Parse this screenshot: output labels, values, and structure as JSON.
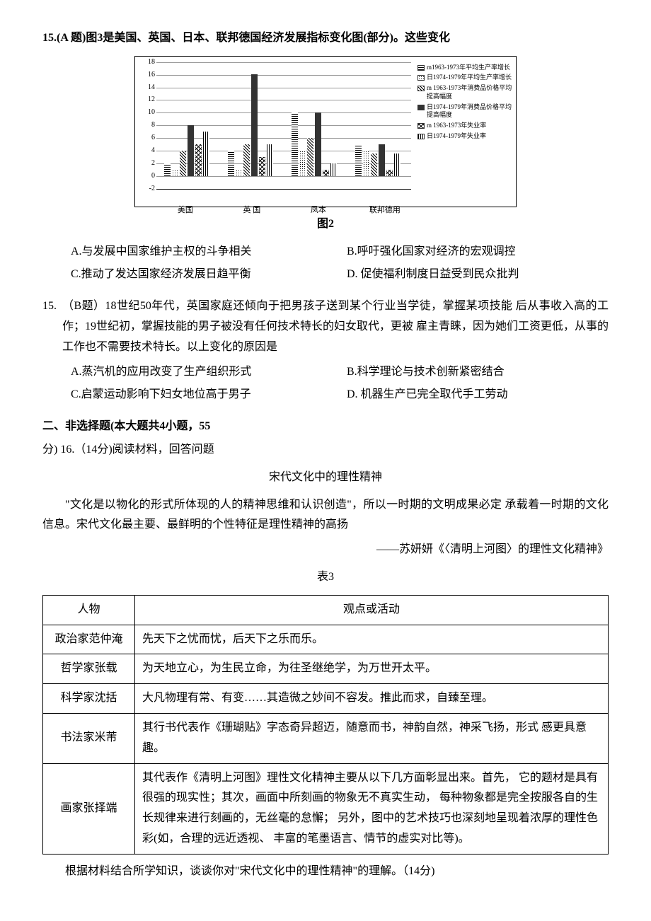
{
  "q15a": {
    "header": "15.(A 题)图3是美国、英国、日本、联邦德国经济发展指标变化图(部分)。这些变化",
    "caption": "图2",
    "options": {
      "A": "A.与发展中国家维护主权的斗争相关",
      "B": "B.呼吁强化国家对经济的宏观调控",
      "C": "C.推动了发达国家经济发展日趋平衡",
      "D": "D. 促使福利制度日益受到民众批判"
    }
  },
  "chart": {
    "ylim": [
      -2,
      18
    ],
    "ytick_step": 2,
    "categories": [
      "美国",
      "英 国",
      "凤本",
      "联邦德用"
    ],
    "series": [
      {
        "label": "m1963-1973年平均生产率增长",
        "pattern": "pattern-hatch"
      },
      {
        "label": "日1974-1979年平均生产率增长",
        "pattern": "pattern-dots"
      },
      {
        "label": "m 1963-1973年消费品价格平均提高幅度",
        "pattern": "pattern-diag"
      },
      {
        "label": "日1974-1979年消费品价格平均提高幅度",
        "pattern": "pattern-solid"
      },
      {
        "label": "m 1963-1973年失业率",
        "pattern": "pattern-cross"
      },
      {
        "label": "日1974-1979年失业率",
        "pattern": "pattern-vert"
      }
    ],
    "values": [
      [
        2,
        1,
        4,
        8,
        5,
        7
      ],
      [
        4,
        1,
        5,
        16,
        3,
        5
      ],
      [
        10,
        4,
        6,
        10,
        1,
        2
      ],
      [
        5,
        4,
        3.5,
        5,
        1,
        3.5
      ]
    ],
    "group_width_pct": 20,
    "group_positions_pct": [
      3,
      28,
      53,
      78
    ]
  },
  "q15b": {
    "num": "15.",
    "body": "（B题）18世纪50年代，英国家庭还倾向于把男孩子送到某个行业当学徒，掌握某项技能 后从事收入高的工作；19世纪初，掌握技能的男子被没有任何技术特长的妇女取代，更被 雇主青睐，因为她们工资更低，从事的工作也不需要技术特长。以上变化的原因是",
    "options": {
      "A": "A.蒸汽机的应用改变了生产组织形式",
      "B": "B.科学理论与技术创新紧密结合",
      "C": "C.启蒙运动影响下妇女地位高于男子",
      "D": "D. 机器生产已完全取代手工劳动"
    }
  },
  "section2": {
    "header": "二、非选择题(本大题共4小题，55",
    "sub": "分)  16.（14分)阅读材料，回答问题",
    "title": "宋代文化中的理性精神",
    "para": "\"文化是以物化的形式所体现的人的精神思维和认识创造\"，所以一时期的文明成果必定 承载着一时期的文化信息。宋代文化最主要、最鲜明的个性特征是理性精神的高扬",
    "citation": "——苏妍妍《〈清明上河图〉的理性文化精神》",
    "table_caption": "表3"
  },
  "table": {
    "headers": [
      "人物",
      "观点或活动"
    ],
    "rows": [
      [
        "政治家范仲淹",
        "先天下之忧而忧，后天下之乐而乐。"
      ],
      [
        "哲学家张载",
        "为天地立心，为生民立命，为往圣继绝学，为万世开太平。"
      ],
      [
        "科学家沈括",
        "大凡物理有常、有变……其造微之妙间不容发。推此而求，自臻至理。"
      ],
      [
        "书法家米芾",
        "其行书代表作《珊瑚贴》字态奇异超迈，随意而书，神韵自然，神采飞扬，形式 感更具意趣。"
      ],
      [
        "画家张择端",
        "其代表作《清明上河图》理性文化精神主要从以下几方面彰显出来。首先， 它的题材是具有很强的现实性；其次，画面中所刻画的物象无不真实生动， 每种物象都是完全按服各自的生长规律来进行刻画的，无丝毫的怠懈； 另外，图中的艺术技巧也深刻地呈现着浓厚的理性色彩(如，合理的远近透视、 丰富的笔墨语言、情节的虚实对比等)。"
      ]
    ]
  },
  "final": "根据材料结合所学知识，谈谈你对\"宋代文化中的理性精神\"的理解。（14分)"
}
